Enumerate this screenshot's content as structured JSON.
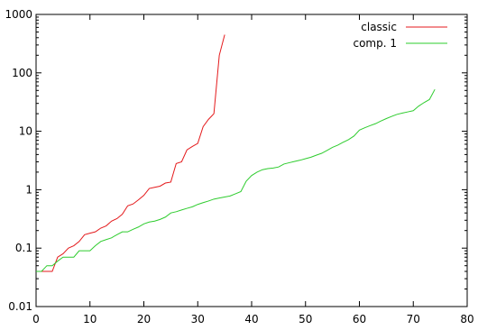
{
  "chart_data": {
    "type": "line",
    "title": "",
    "xlabel": "",
    "ylabel": "",
    "xlim": [
      0,
      80
    ],
    "ylim": [
      0.01,
      1000
    ],
    "y_scale": "log",
    "grid": false,
    "legend_position": "top-right",
    "x_ticks": [
      0,
      10,
      20,
      30,
      40,
      50,
      60,
      70,
      80
    ],
    "x_tick_labels": [
      "0",
      "10",
      "20",
      "30",
      "40",
      "50",
      "60",
      "70",
      "80"
    ],
    "y_ticks": [
      0.01,
      0.1,
      1,
      10,
      100,
      1000
    ],
    "y_tick_labels": [
      "0.01",
      "0.1",
      "1",
      "10",
      "100",
      "1000"
    ],
    "series": [
      {
        "name": "classic",
        "color": "#e41a1c",
        "points": [
          [
            0,
            0.04
          ],
          [
            1,
            0.04
          ],
          [
            2,
            0.04
          ],
          [
            3,
            0.04
          ],
          [
            4,
            0.07
          ],
          [
            5,
            0.08
          ],
          [
            6,
            0.1
          ],
          [
            7,
            0.11
          ],
          [
            8,
            0.13
          ],
          [
            9,
            0.17
          ],
          [
            10,
            0.18
          ],
          [
            11,
            0.19
          ],
          [
            12,
            0.22
          ],
          [
            13,
            0.24
          ],
          [
            14,
            0.29
          ],
          [
            15,
            0.32
          ],
          [
            16,
            0.38
          ],
          [
            17,
            0.53
          ],
          [
            18,
            0.57
          ],
          [
            19,
            0.67
          ],
          [
            20,
            0.8
          ],
          [
            21,
            1.05
          ],
          [
            22,
            1.1
          ],
          [
            23,
            1.15
          ],
          [
            24,
            1.3
          ],
          [
            25,
            1.35
          ],
          [
            26,
            2.8
          ],
          [
            27,
            3.0
          ],
          [
            28,
            4.8
          ],
          [
            29,
            5.5
          ],
          [
            30,
            6.2
          ],
          [
            31,
            12
          ],
          [
            32,
            16
          ],
          [
            33,
            20
          ],
          [
            34,
            200
          ],
          [
            35,
            450
          ]
        ]
      },
      {
        "name": "comp. 1",
        "color": "#2ecc2e",
        "points": [
          [
            0,
            0.04
          ],
          [
            1,
            0.04
          ],
          [
            2,
            0.05
          ],
          [
            3,
            0.05
          ],
          [
            4,
            0.06
          ],
          [
            5,
            0.07
          ],
          [
            6,
            0.07
          ],
          [
            7,
            0.07
          ],
          [
            8,
            0.09
          ],
          [
            9,
            0.09
          ],
          [
            10,
            0.09
          ],
          [
            11,
            0.11
          ],
          [
            12,
            0.13
          ],
          [
            13,
            0.14
          ],
          [
            14,
            0.15
          ],
          [
            15,
            0.17
          ],
          [
            16,
            0.19
          ],
          [
            17,
            0.19
          ],
          [
            18,
            0.21
          ],
          [
            19,
            0.23
          ],
          [
            20,
            0.26
          ],
          [
            21,
            0.28
          ],
          [
            22,
            0.29
          ],
          [
            23,
            0.31
          ],
          [
            24,
            0.34
          ],
          [
            25,
            0.4
          ],
          [
            26,
            0.42
          ],
          [
            27,
            0.45
          ],
          [
            28,
            0.48
          ],
          [
            29,
            0.51
          ],
          [
            30,
            0.56
          ],
          [
            31,
            0.6
          ],
          [
            32,
            0.64
          ],
          [
            33,
            0.69
          ],
          [
            34,
            0.72
          ],
          [
            35,
            0.75
          ],
          [
            36,
            0.78
          ],
          [
            37,
            0.85
          ],
          [
            38,
            0.93
          ],
          [
            39,
            1.4
          ],
          [
            40,
            1.75
          ],
          [
            41,
            2.0
          ],
          [
            42,
            2.2
          ],
          [
            43,
            2.3
          ],
          [
            44,
            2.35
          ],
          [
            45,
            2.45
          ],
          [
            46,
            2.75
          ],
          [
            47,
            2.9
          ],
          [
            48,
            3.05
          ],
          [
            49,
            3.2
          ],
          [
            50,
            3.4
          ],
          [
            51,
            3.6
          ],
          [
            52,
            3.9
          ],
          [
            53,
            4.2
          ],
          [
            54,
            4.7
          ],
          [
            55,
            5.3
          ],
          [
            56,
            5.8
          ],
          [
            57,
            6.5
          ],
          [
            58,
            7.2
          ],
          [
            59,
            8.3
          ],
          [
            60,
            10.5
          ],
          [
            61,
            11.5
          ],
          [
            62,
            12.5
          ],
          [
            63,
            13.5
          ],
          [
            64,
            15
          ],
          [
            65,
            16.5
          ],
          [
            66,
            18
          ],
          [
            67,
            19.5
          ],
          [
            68,
            20.5
          ],
          [
            69,
            21.5
          ],
          [
            70,
            22.5
          ],
          [
            71,
            27
          ],
          [
            72,
            31
          ],
          [
            73,
            35
          ],
          [
            74,
            52
          ]
        ]
      }
    ]
  }
}
